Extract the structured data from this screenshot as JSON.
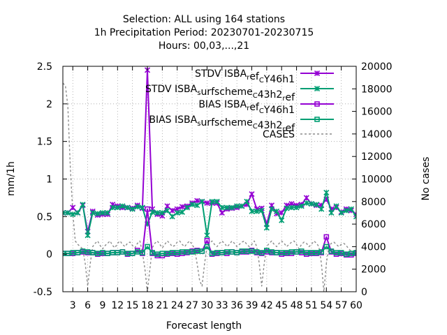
{
  "chart_data": {
    "type": "line",
    "title_lines": [
      "Selection: ALL using   164 stations",
      "1h Precipitation   Period: 20230701-20230715",
      "Hours:  00,03,...,21"
    ],
    "xlabel": "Forecast length",
    "ylabel": "mm/1h",
    "y2label": "No cases",
    "xlim": [
      1,
      60
    ],
    "ylim": [
      -0.5,
      2.5
    ],
    "y2lim": [
      0,
      20000
    ],
    "xticks": [
      3,
      6,
      9,
      12,
      15,
      18,
      21,
      24,
      27,
      30,
      33,
      36,
      39,
      42,
      45,
      48,
      51,
      54,
      57,
      60
    ],
    "xtick_labels": [
      "3",
      "6",
      "9",
      "12",
      "15",
      "18",
      "21",
      "24",
      "27",
      "30",
      "33",
      "36",
      "39",
      "42",
      "45",
      "48",
      "51",
      "54",
      "57",
      "60"
    ],
    "yticks": [
      -0.5,
      0,
      0.5,
      1,
      1.5,
      2,
      2.5
    ],
    "ytick_labels": [
      "-0.5",
      "0",
      "0.5",
      "1",
      "1.5",
      "2",
      "2.5"
    ],
    "y2ticks": [
      0,
      2000,
      4000,
      6000,
      8000,
      10000,
      12000,
      14000,
      16000,
      18000,
      20000
    ],
    "y2tick_labels": [
      "0",
      "2000",
      "4000",
      "6000",
      "8000",
      "10000",
      "12000",
      "14000",
      "16000",
      "18000",
      "20000"
    ],
    "grid": true,
    "legend_position": "top-right",
    "series": [
      {
        "name": "STDV ISBA_ref_CY46h1",
        "legend_main": [
          "STDV ISBA",
          " ",
          "ef",
          " ",
          "Y46h1"
        ],
        "legend_sub": [
          "r",
          "C"
        ],
        "color": "#9400d3",
        "marker": "x-star",
        "axis": "y1",
        "x": [
          1,
          2,
          3,
          4,
          5,
          6,
          7,
          8,
          9,
          10,
          11,
          12,
          13,
          14,
          15,
          16,
          17,
          18,
          19,
          20,
          21,
          22,
          23,
          24,
          25,
          26,
          27,
          28,
          29,
          30,
          31,
          32,
          33,
          34,
          35,
          36,
          37,
          38,
          39,
          40,
          41,
          42,
          43,
          44,
          45,
          46,
          47,
          48,
          49,
          50,
          51,
          52,
          53,
          54,
          55,
          56,
          57,
          58,
          59,
          60
        ],
        "y": [
          0.55,
          0.55,
          0.62,
          0.55,
          0.65,
          0.3,
          0.57,
          0.52,
          0.53,
          0.53,
          0.66,
          0.64,
          0.62,
          0.62,
          0.61,
          0.65,
          0.61,
          2.45,
          0.6,
          0.53,
          0.51,
          0.64,
          0.58,
          0.6,
          0.63,
          0.64,
          0.68,
          0.71,
          0.7,
          0.68,
          0.68,
          0.68,
          0.55,
          0.6,
          0.61,
          0.62,
          0.64,
          0.66,
          0.8,
          0.6,
          0.61,
          0.4,
          0.65,
          0.54,
          0.55,
          0.65,
          0.67,
          0.65,
          0.66,
          0.75,
          0.67,
          0.65,
          0.65,
          0.73,
          0.6,
          0.62,
          0.56,
          0.6,
          0.58,
          0.53
        ]
      },
      {
        "name": "STDV ISBA_surfscheme_C43h2_ref",
        "legend_main": [
          "STDV ISBA",
          " ",
          "urfscheme",
          " ",
          "43h2",
          " ",
          "ef"
        ],
        "legend_sub": [
          "s",
          "C",
          "r"
        ],
        "color": "#009e73",
        "marker": "x-star",
        "axis": "y1",
        "x": [
          1,
          2,
          3,
          4,
          5,
          6,
          7,
          8,
          9,
          10,
          11,
          12,
          13,
          14,
          15,
          16,
          17,
          18,
          19,
          20,
          21,
          22,
          23,
          24,
          25,
          26,
          27,
          28,
          29,
          30,
          31,
          32,
          33,
          34,
          35,
          36,
          37,
          38,
          39,
          40,
          41,
          42,
          43,
          44,
          45,
          46,
          47,
          48,
          49,
          50,
          51,
          52,
          53,
          54,
          55,
          56,
          57,
          58,
          59,
          60
        ],
        "y": [
          0.55,
          0.55,
          0.53,
          0.55,
          0.66,
          0.25,
          0.55,
          0.54,
          0.55,
          0.55,
          0.62,
          0.62,
          0.64,
          0.62,
          0.6,
          0.63,
          0.62,
          0.4,
          0.56,
          0.55,
          0.55,
          0.58,
          0.5,
          0.55,
          0.56,
          0.62,
          0.66,
          0.65,
          0.7,
          0.25,
          0.7,
          0.7,
          0.62,
          0.62,
          0.62,
          0.64,
          0.64,
          0.7,
          0.57,
          0.57,
          0.58,
          0.35,
          0.6,
          0.57,
          0.45,
          0.61,
          0.62,
          0.62,
          0.64,
          0.68,
          0.67,
          0.66,
          0.6,
          0.82,
          0.55,
          0.64,
          0.55,
          0.58,
          0.6,
          0.5
        ]
      },
      {
        "name": "BIAS ISBA_ref_CY46h1",
        "legend_main": [
          "BIAS ISBA",
          " ",
          "ef",
          " ",
          "Y46h1"
        ],
        "legend_sub": [
          "r",
          "C"
        ],
        "color": "#9400d3",
        "marker": "square",
        "axis": "y1",
        "x": [
          1,
          2,
          3,
          4,
          5,
          6,
          7,
          8,
          9,
          10,
          11,
          12,
          13,
          14,
          15,
          16,
          17,
          18,
          19,
          20,
          21,
          22,
          23,
          24,
          25,
          26,
          27,
          28,
          29,
          30,
          31,
          32,
          33,
          34,
          35,
          36,
          37,
          38,
          39,
          40,
          41,
          42,
          43,
          44,
          45,
          46,
          47,
          48,
          49,
          50,
          51,
          52,
          53,
          54,
          55,
          56,
          57,
          58,
          59,
          60
        ],
        "y": [
          0.01,
          0.01,
          0.01,
          0.02,
          0.03,
          0.02,
          0.02,
          0.0,
          0.01,
          0.01,
          0.02,
          0.02,
          0.03,
          0.0,
          0.01,
          0.05,
          0.01,
          0.6,
          0.01,
          -0.02,
          -0.02,
          0.0,
          0.01,
          0.0,
          0.01,
          0.02,
          0.04,
          0.05,
          0.04,
          0.18,
          0.0,
          0.01,
          0.02,
          0.01,
          0.03,
          0.02,
          0.03,
          0.03,
          0.05,
          0.02,
          0.01,
          0.03,
          0.02,
          0.02,
          0.0,
          0.01,
          0.01,
          0.03,
          0.02,
          0.0,
          0.01,
          0.01,
          0.02,
          0.23,
          0.03,
          0.0,
          0.01,
          -0.01,
          -0.01,
          0.01
        ]
      },
      {
        "name": "BIAS ISBA_surfscheme_C43h2_ref",
        "legend_main": [
          "BIAS ISBA",
          " ",
          "urfscheme",
          " ",
          "43h2",
          " ",
          "ef"
        ],
        "legend_sub": [
          "s",
          "C",
          "r"
        ],
        "color": "#009e73",
        "marker": "square",
        "axis": "y1",
        "x": [
          1,
          2,
          3,
          4,
          5,
          6,
          7,
          8,
          9,
          10,
          11,
          12,
          13,
          14,
          15,
          16,
          17,
          18,
          19,
          20,
          21,
          22,
          23,
          24,
          25,
          26,
          27,
          28,
          29,
          30,
          31,
          32,
          33,
          34,
          35,
          36,
          37,
          38,
          39,
          40,
          41,
          42,
          43,
          44,
          45,
          46,
          47,
          48,
          49,
          50,
          51,
          52,
          53,
          54,
          55,
          56,
          57,
          58,
          59,
          60
        ],
        "y": [
          0.01,
          0.01,
          0.02,
          0.02,
          0.04,
          0.03,
          0.02,
          0.01,
          0.02,
          0.01,
          0.02,
          0.02,
          0.03,
          0.01,
          0.01,
          0.03,
          0.02,
          0.1,
          0.02,
          0.0,
          0.01,
          0.01,
          0.02,
          0.02,
          0.03,
          0.03,
          0.03,
          0.04,
          0.04,
          0.1,
          0.01,
          0.02,
          0.02,
          0.03,
          0.03,
          0.02,
          0.04,
          0.04,
          0.04,
          0.03,
          0.02,
          0.05,
          0.03,
          0.02,
          0.02,
          0.02,
          0.03,
          0.03,
          0.04,
          0.02,
          0.02,
          0.02,
          0.03,
          0.1,
          0.04,
          0.02,
          0.02,
          0.0,
          0.01,
          0.02
        ]
      },
      {
        "name": "CASES",
        "legend_main": [
          "CASES"
        ],
        "legend_sub": [],
        "color": "#8c8c8c",
        "marker": "none",
        "dashed": true,
        "axis": "y2",
        "x": [
          1,
          1.5,
          2,
          2.5,
          3,
          3.5,
          4,
          4.5,
          5,
          5.5,
          6,
          6.5,
          7,
          7.5,
          8,
          8.5,
          9,
          9.5,
          10,
          10.5,
          11,
          11.5,
          12,
          12.5,
          13,
          13.5,
          14,
          14.5,
          15,
          15.5,
          16,
          16.5,
          17,
          17.5,
          18,
          18.5,
          19,
          19.5,
          20,
          20.5,
          21,
          21.5,
          22,
          22.5,
          23,
          23.5,
          24,
          24.5,
          25,
          25.5,
          26,
          26.5,
          27,
          27.5,
          28,
          28.5,
          29,
          29.5,
          30,
          30.5,
          31,
          31.5,
          32,
          32.5,
          33,
          33.5,
          34,
          34.5,
          35,
          35.5,
          36,
          36.5,
          37,
          37.5,
          38,
          38.5,
          39,
          39.5,
          40,
          40.5,
          41,
          41.5,
          42,
          42.5,
          43,
          43.5,
          44,
          44.5,
          45,
          45.5,
          46,
          46.5,
          47,
          47.5,
          48,
          48.5,
          49,
          49.5,
          50,
          50.5,
          51,
          51.5,
          52,
          52.5,
          53,
          53.5,
          54,
          54.5,
          55,
          55.5,
          56,
          56.5,
          57,
          57.5,
          58,
          58.5,
          59,
          59.5,
          60
        ],
        "y": [
          18500,
          18300,
          16500,
          11000,
          7000,
          4500,
          4200,
          4000,
          3800,
          2500,
          500,
          2500,
          4000,
          4300,
          4500,
          4100,
          3800,
          4100,
          4300,
          4500,
          4100,
          3900,
          4300,
          4500,
          4200,
          4000,
          4300,
          4400,
          4100,
          3900,
          4300,
          4500,
          3500,
          2000,
          0,
          2000,
          3900,
          4300,
          4500,
          4200,
          3900,
          4200,
          4500,
          4300,
          4000,
          4100,
          4400,
          4500,
          4200,
          4000,
          4300,
          4500,
          4200,
          3800,
          2500,
          1000,
          500,
          2500,
          4000,
          4300,
          4500,
          4200,
          4000,
          4300,
          4500,
          4300,
          4000,
          4200,
          4500,
          4300,
          4000,
          4200,
          4400,
          4500,
          4200,
          4000,
          4200,
          4500,
          4000,
          2500,
          500,
          2500,
          4000,
          4300,
          4500,
          4200,
          4000,
          4300,
          4500,
          4300,
          4000,
          4200,
          4400,
          4500,
          4200,
          3800,
          4200,
          4400,
          4300,
          4000,
          4200,
          4500,
          4300,
          4000,
          2500,
          0,
          2500,
          4000,
          4300,
          4400,
          4200,
          4000,
          4200,
          4300,
          4100,
          3800,
          3600,
          3500,
          3300
        ]
      }
    ]
  }
}
